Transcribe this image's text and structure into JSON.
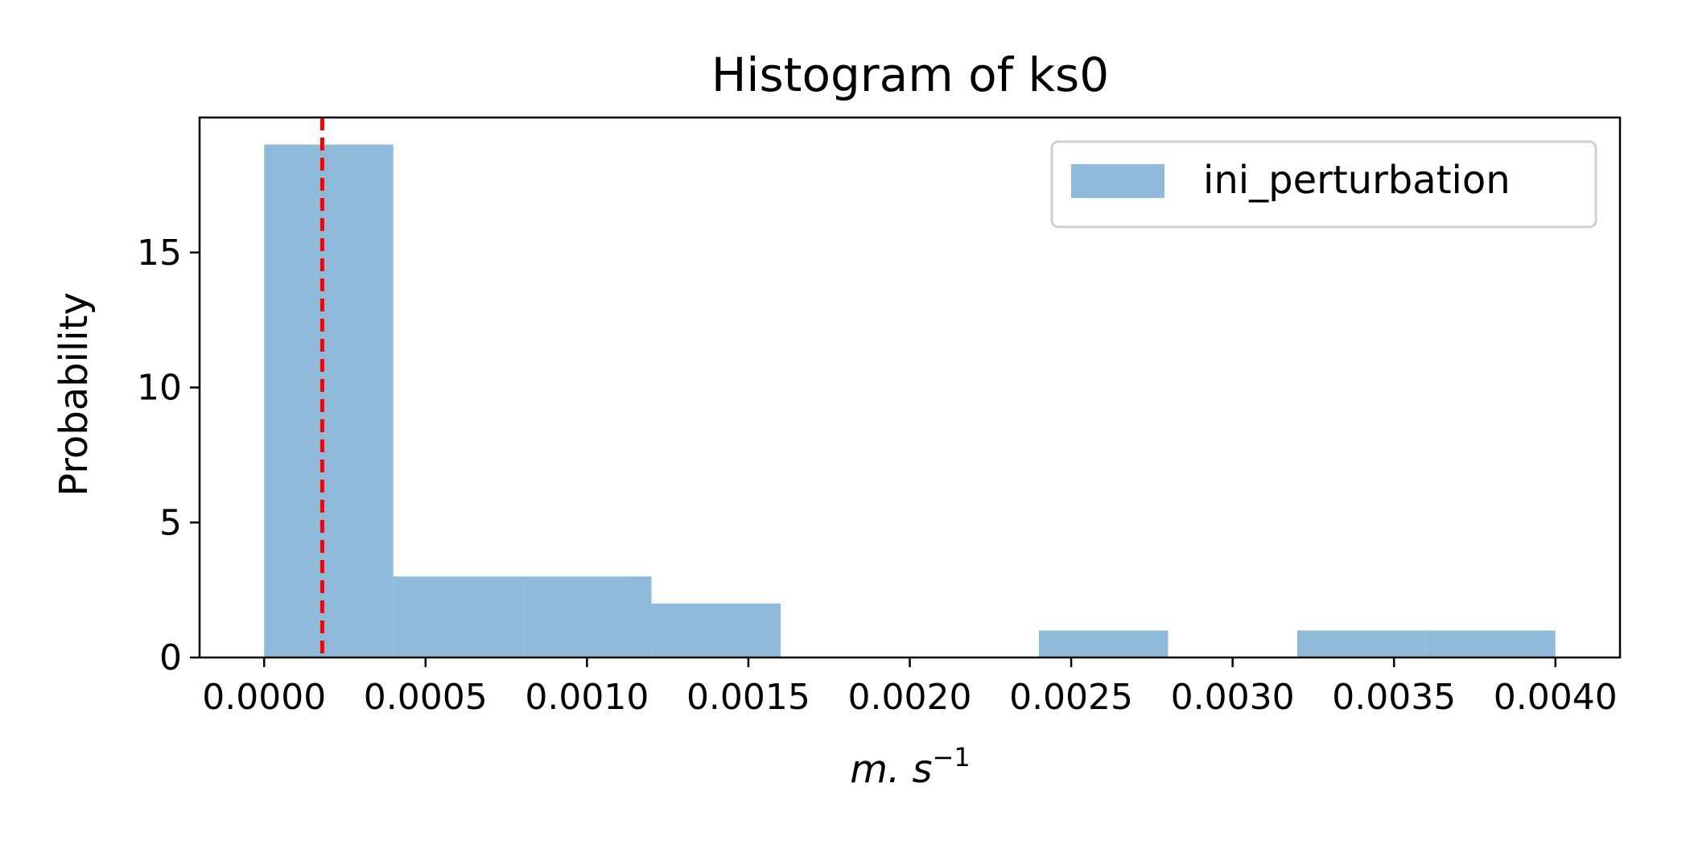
{
  "chart_data": {
    "type": "bar",
    "title": "Histogram of ks0",
    "xlabel": "m. s",
    "xlabel_superscript": "−1",
    "ylabel": "Probability",
    "xlim": [
      -0.0002,
      0.0042
    ],
    "ylim": [
      0,
      20
    ],
    "bin_edges": [
      0.0,
      0.0004,
      0.0008,
      0.0012,
      0.0016,
      0.002,
      0.0024,
      0.0028,
      0.0032,
      0.0036,
      0.004
    ],
    "series": [
      {
        "name": "ini_perturbation",
        "values": [
          19,
          3,
          3,
          2,
          0,
          0,
          1,
          0,
          1,
          1
        ],
        "color": "#8fbad9"
      }
    ],
    "reference_line": {
      "x": 0.00018,
      "color": "#ff0000",
      "style": "dashed"
    },
    "xticks": [
      {
        "value": 0.0,
        "label": "0.0000"
      },
      {
        "value": 0.0005,
        "label": "0.0005"
      },
      {
        "value": 0.001,
        "label": "0.0010"
      },
      {
        "value": 0.0015,
        "label": "0.0015"
      },
      {
        "value": 0.002,
        "label": "0.0020"
      },
      {
        "value": 0.0025,
        "label": "0.0025"
      },
      {
        "value": 0.003,
        "label": "0.0030"
      },
      {
        "value": 0.0035,
        "label": "0.0035"
      },
      {
        "value": 0.004,
        "label": "0.0040"
      }
    ],
    "yticks": [
      {
        "value": 0,
        "label": "0"
      },
      {
        "value": 5,
        "label": "5"
      },
      {
        "value": 10,
        "label": "10"
      },
      {
        "value": 15,
        "label": "15"
      }
    ],
    "legend": {
      "position": "top-right"
    },
    "grid": false
  }
}
